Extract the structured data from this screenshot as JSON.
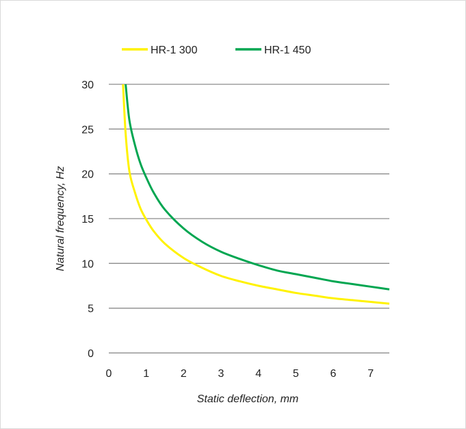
{
  "chart_data": {
    "type": "line",
    "xlabel": "Static deflection, mm",
    "ylabel": "Natural frequency, Hz",
    "xlim": [
      0,
      7.5
    ],
    "ylim": [
      0,
      30
    ],
    "x_ticks": [
      0,
      1,
      2,
      3,
      4,
      5,
      6,
      7
    ],
    "y_ticks": [
      0,
      5,
      10,
      15,
      20,
      25,
      30
    ],
    "grid": "horizontal",
    "legend_position": "top",
    "series": [
      {
        "name": "HR-1 300",
        "color": "#fff200",
        "x": [
          0.38,
          0.45,
          0.55,
          0.7,
          0.85,
          1.0,
          1.2,
          1.5,
          2.0,
          2.5,
          3.0,
          3.5,
          4.0,
          4.5,
          5.0,
          5.5,
          6.0,
          6.5,
          7.0,
          7.5
        ],
        "values": [
          30.0,
          24.5,
          20.3,
          17.9,
          16.1,
          14.9,
          13.6,
          12.2,
          10.6,
          9.5,
          8.6,
          8.0,
          7.5,
          7.1,
          6.7,
          6.4,
          6.1,
          5.9,
          5.7,
          5.5
        ]
      },
      {
        "name": "HR-1 450",
        "color": "#00a651",
        "x": [
          0.45,
          0.55,
          0.7,
          0.85,
          1.0,
          1.2,
          1.5,
          2.0,
          2.5,
          3.0,
          3.5,
          4.0,
          4.5,
          5.0,
          5.5,
          6.0,
          6.5,
          7.0,
          7.5
        ],
        "values": [
          30.0,
          26.0,
          23.2,
          21.1,
          19.6,
          17.9,
          16.0,
          13.9,
          12.4,
          11.3,
          10.5,
          9.8,
          9.2,
          8.8,
          8.4,
          8.0,
          7.7,
          7.4,
          7.1
        ]
      }
    ]
  }
}
